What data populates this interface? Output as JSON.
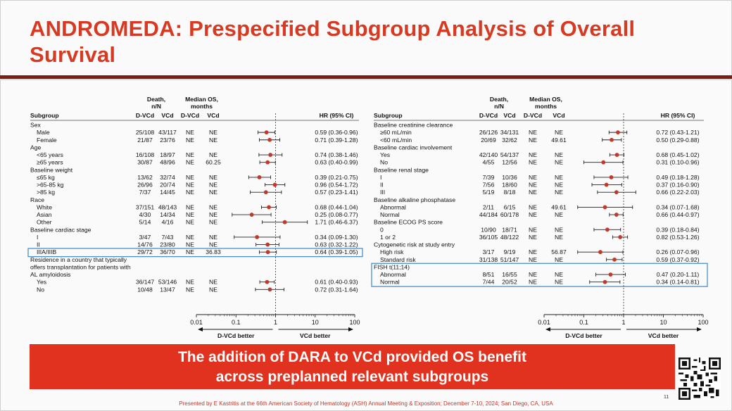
{
  "slide": {
    "title_line1": "ANDROMEDA: Prespecified Subgroup Analysis of Overall",
    "title_line2": "Survival",
    "banner_line1": "The addition of DARA to VCd provided OS benefit",
    "banner_line2": "across preplanned relevant subgroups",
    "footer": "Presented by E Kastritis at the 66th American Society of Hematology (ASH) Annual Meeting & Exposition; December 7-10, 2024; San Diego, CA, USA",
    "page_number": "11",
    "colors": {
      "accent": "#e0321e",
      "title": "#d63a22",
      "rule": "#7a1d12",
      "point": "#c0392b",
      "highlight_box": "#4a90c8"
    }
  },
  "headers": {
    "subgroup": "Subgroup",
    "death": "Death,",
    "death_sub": "n/N",
    "median": "Median OS,",
    "median_sub": "months",
    "dvcd": "D-VCd",
    "vcd": "VCd",
    "hr": "HR (95% CI)"
  },
  "chart_data": [
    {
      "type": "forest",
      "axis": {
        "scale": "log",
        "xlim": [
          0.01,
          100
        ],
        "ticks": [
          "0.01",
          "0.1",
          "1",
          "10",
          "100"
        ],
        "ref_line": 1,
        "left_label": "D-VCd better",
        "right_label": "VCd better"
      },
      "rows": [
        {
          "kind": "group",
          "label": "Sex"
        },
        {
          "kind": "item",
          "label": "Male",
          "d_dvcd": "25/108",
          "d_vcd": "43/117",
          "m_dvcd": "NE",
          "m_vcd": "NE",
          "hr": 0.59,
          "lo": 0.36,
          "hi": 0.96,
          "hr_text": "0.59 (0.36-0.96)"
        },
        {
          "kind": "item",
          "label": "Female",
          "d_dvcd": "21/87",
          "d_vcd": "23/76",
          "m_dvcd": "NE",
          "m_vcd": "NE",
          "hr": 0.71,
          "lo": 0.39,
          "hi": 1.28,
          "hr_text": "0.71 (0.39-1.28)"
        },
        {
          "kind": "group",
          "label": "Age"
        },
        {
          "kind": "item",
          "label": "<65 years",
          "d_dvcd": "16/108",
          "d_vcd": "18/97",
          "m_dvcd": "NE",
          "m_vcd": "NE",
          "hr": 0.74,
          "lo": 0.38,
          "hi": 1.46,
          "hr_text": "0.74 (0.38-1.46)"
        },
        {
          "kind": "item",
          "label": "≥65 years",
          "d_dvcd": "30/87",
          "d_vcd": "48/96",
          "m_dvcd": "NE",
          "m_vcd": "60.25",
          "hr": 0.63,
          "lo": 0.4,
          "hi": 0.99,
          "hr_text": "0.63 (0.40-0.99)"
        },
        {
          "kind": "group",
          "label": "Baseline weight"
        },
        {
          "kind": "item",
          "label": "≤65 kg",
          "d_dvcd": "13/62",
          "d_vcd": "32/74",
          "m_dvcd": "NE",
          "m_vcd": "NE",
          "hr": 0.39,
          "lo": 0.21,
          "hi": 0.75,
          "hr_text": "0.39 (0.21-0.75)"
        },
        {
          "kind": "item",
          "label": ">65-85 kg",
          "d_dvcd": "26/96",
          "d_vcd": "20/74",
          "m_dvcd": "NE",
          "m_vcd": "NE",
          "hr": 0.96,
          "lo": 0.54,
          "hi": 1.72,
          "hr_text": "0.96 (0.54-1.72)"
        },
        {
          "kind": "item",
          "label": ">85 kg",
          "d_dvcd": "7/37",
          "d_vcd": "14/45",
          "m_dvcd": "NE",
          "m_vcd": "NE",
          "hr": 0.57,
          "lo": 0.23,
          "hi": 1.41,
          "hr_text": "0.57 (0.23-1.41)"
        },
        {
          "kind": "group",
          "label": "Race"
        },
        {
          "kind": "item",
          "label": "White",
          "d_dvcd": "37/151",
          "d_vcd": "48/143",
          "m_dvcd": "NE",
          "m_vcd": "NE",
          "hr": 0.68,
          "lo": 0.44,
          "hi": 1.04,
          "hr_text": "0.68 (0.44-1.04)"
        },
        {
          "kind": "item",
          "label": "Asian",
          "d_dvcd": "4/30",
          "d_vcd": "14/34",
          "m_dvcd": "NE",
          "m_vcd": "NE",
          "hr": 0.25,
          "lo": 0.08,
          "hi": 0.77,
          "hr_text": "0.25 (0.08-0.77)"
        },
        {
          "kind": "item",
          "label": "Other",
          "d_dvcd": "5/14",
          "d_vcd": "4/16",
          "m_dvcd": "NE",
          "m_vcd": "NE",
          "hr": 1.71,
          "lo": 0.46,
          "hi": 6.37,
          "hr_text": "1.71 (0.46-6.37)"
        },
        {
          "kind": "group",
          "label": "Baseline cardiac stage"
        },
        {
          "kind": "item",
          "label": "I",
          "d_dvcd": "3/47",
          "d_vcd": "7/43",
          "m_dvcd": "NE",
          "m_vcd": "NE",
          "hr": 0.34,
          "lo": 0.09,
          "hi": 1.3,
          "hr_text": "0.34 (0.09-1.30)"
        },
        {
          "kind": "item",
          "label": "II",
          "d_dvcd": "14/76",
          "d_vcd": "23/80",
          "m_dvcd": "NE",
          "m_vcd": "NE",
          "hr": 0.63,
          "lo": 0.32,
          "hi": 1.22,
          "hr_text": "0.63 (0.32-1.22)"
        },
        {
          "kind": "item",
          "label": "IIIA/IIIB",
          "d_dvcd": "29/72",
          "d_vcd": "36/70",
          "m_dvcd": "NE",
          "m_vcd": "36.83",
          "hr": 0.64,
          "lo": 0.39,
          "hi": 1.05,
          "hr_text": "0.64 (0.39-1.05)",
          "highlight": true
        },
        {
          "kind": "group",
          "label": "Residence in a country that typically"
        },
        {
          "kind": "group",
          "label": "offers transplantation for patients with"
        },
        {
          "kind": "group",
          "label": "AL amyloidosis"
        },
        {
          "kind": "item",
          "label": "Yes",
          "d_dvcd": "36/147",
          "d_vcd": "53/146",
          "m_dvcd": "NE",
          "m_vcd": "NE",
          "hr": 0.61,
          "lo": 0.4,
          "hi": 0.93,
          "hr_text": "0.61 (0.40-0.93)"
        },
        {
          "kind": "item",
          "label": "No",
          "d_dvcd": "10/48",
          "d_vcd": "13/47",
          "m_dvcd": "NE",
          "m_vcd": "NE",
          "hr": 0.72,
          "lo": 0.31,
          "hi": 1.64,
          "hr_text": "0.72 (0.31-1.64)"
        }
      ]
    },
    {
      "type": "forest",
      "axis": {
        "scale": "log",
        "xlim": [
          0.01,
          100
        ],
        "ticks": [
          "0.01",
          "0.1",
          "1",
          "10",
          "100"
        ],
        "ref_line": 1,
        "left_label": "D-VCd better",
        "right_label": "VCd better"
      },
      "rows": [
        {
          "kind": "group",
          "label": "Baseline creatinine clearance"
        },
        {
          "kind": "item",
          "label": "≥60 mL/min",
          "d_dvcd": "26/126",
          "d_vcd": "34/131",
          "m_dvcd": "NE",
          "m_vcd": "NE",
          "hr": 0.72,
          "lo": 0.43,
          "hi": 1.21,
          "hr_text": "0.72 (0.43-1.21)"
        },
        {
          "kind": "item",
          "label": "<60 mL/min",
          "d_dvcd": "20/69",
          "d_vcd": "32/62",
          "m_dvcd": "NE",
          "m_vcd": "49.61",
          "hr": 0.5,
          "lo": 0.29,
          "hi": 0.88,
          "hr_text": "0.50 (0.29-0.88)"
        },
        {
          "kind": "group",
          "label": "Baseline cardiac involvement"
        },
        {
          "kind": "item",
          "label": "Yes",
          "d_dvcd": "42/140",
          "d_vcd": "54/137",
          "m_dvcd": "NE",
          "m_vcd": "NE",
          "hr": 0.68,
          "lo": 0.45,
          "hi": 1.02,
          "hr_text": "0.68 (0.45-1.02)"
        },
        {
          "kind": "item",
          "label": "No",
          "d_dvcd": "4/55",
          "d_vcd": "12/56",
          "m_dvcd": "NE",
          "m_vcd": "NE",
          "hr": 0.31,
          "lo": 0.1,
          "hi": 0.96,
          "hr_text": "0.31 (0.10-0.96)"
        },
        {
          "kind": "group",
          "label": "Baseline renal stage"
        },
        {
          "kind": "item",
          "label": "I",
          "d_dvcd": "7/39",
          "d_vcd": "10/36",
          "m_dvcd": "NE",
          "m_vcd": "NE",
          "hr": 0.49,
          "lo": 0.18,
          "hi": 1.28,
          "hr_text": "0.49 (0.18-1.28)"
        },
        {
          "kind": "item",
          "label": "II",
          "d_dvcd": "7/56",
          "d_vcd": "18/60",
          "m_dvcd": "NE",
          "m_vcd": "NE",
          "hr": 0.37,
          "lo": 0.16,
          "hi": 0.9,
          "hr_text": "0.37 (0.16-0.90)"
        },
        {
          "kind": "item",
          "label": "III",
          "d_dvcd": "5/19",
          "d_vcd": "8/18",
          "m_dvcd": "NE",
          "m_vcd": "NE",
          "hr": 0.66,
          "lo": 0.22,
          "hi": 2.03,
          "hr_text": "0.66 (0.22-2.03)"
        },
        {
          "kind": "group",
          "label": "Baseline alkaline phosphatase"
        },
        {
          "kind": "item",
          "label": "Abnormal",
          "d_dvcd": "2/11",
          "d_vcd": "6/15",
          "m_dvcd": "NE",
          "m_vcd": "49.61",
          "hr": 0.34,
          "lo": 0.07,
          "hi": 1.68,
          "hr_text": "0.34 (0.07-1.68)"
        },
        {
          "kind": "item",
          "label": "Normal",
          "d_dvcd": "44/184",
          "d_vcd": "60/178",
          "m_dvcd": "NE",
          "m_vcd": "NE",
          "hr": 0.66,
          "lo": 0.44,
          "hi": 0.97,
          "hr_text": "0.66 (0.44-0.97)"
        },
        {
          "kind": "group",
          "label": "Baseline ECOG PS score"
        },
        {
          "kind": "item",
          "label": "0",
          "d_dvcd": "10/90",
          "d_vcd": "18/71",
          "m_dvcd": "NE",
          "m_vcd": "NE",
          "hr": 0.39,
          "lo": 0.18,
          "hi": 0.84,
          "hr_text": "0.39 (0.18-0.84)"
        },
        {
          "kind": "item",
          "label": "1 or 2",
          "d_dvcd": "36/105",
          "d_vcd": "48/122",
          "m_dvcd": "NE",
          "m_vcd": "NE",
          "hr": 0.82,
          "lo": 0.53,
          "hi": 1.26,
          "hr_text": "0.82 (0.53-1.26)"
        },
        {
          "kind": "group",
          "label": "Cytogenetic risk at study entry"
        },
        {
          "kind": "item",
          "label": "High risk",
          "d_dvcd": "3/17",
          "d_vcd": "9/19",
          "m_dvcd": "NE",
          "m_vcd": "56.87",
          "hr": 0.26,
          "lo": 0.07,
          "hi": 0.96,
          "hr_text": "0.26 (0.07-0.96)"
        },
        {
          "kind": "item",
          "label": "Standard risk",
          "d_dvcd": "31/138",
          "d_vcd": "51/147",
          "m_dvcd": "NE",
          "m_vcd": "NE",
          "hr": 0.59,
          "lo": 0.37,
          "hi": 0.92,
          "hr_text": "0.59 (0.37-0.92)"
        },
        {
          "kind": "group",
          "label": "FISH t(11;14)",
          "highlight_start": true
        },
        {
          "kind": "item",
          "label": "Abnormal",
          "d_dvcd": "8/51",
          "d_vcd": "16/55",
          "m_dvcd": "NE",
          "m_vcd": "NE",
          "hr": 0.47,
          "lo": 0.2,
          "hi": 1.11,
          "hr_text": "0.47 (0.20-1.11)",
          "highlight": true
        },
        {
          "kind": "item",
          "label": "Normal",
          "d_dvcd": "7/44",
          "d_vcd": "20/52",
          "m_dvcd": "NE",
          "m_vcd": "NE",
          "hr": 0.34,
          "lo": 0.14,
          "hi": 0.81,
          "hr_text": "0.34 (0.14-0.81)",
          "highlight": true
        }
      ]
    }
  ]
}
